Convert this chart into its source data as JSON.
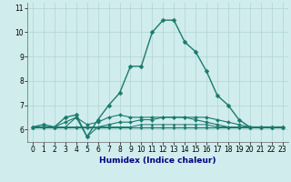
{
  "xlabel": "Humidex (Indice chaleur)",
  "x": [
    0,
    1,
    2,
    3,
    4,
    5,
    6,
    7,
    8,
    9,
    10,
    11,
    12,
    13,
    14,
    15,
    16,
    17,
    18,
    19,
    20,
    21,
    22,
    23
  ],
  "line1": [
    6.1,
    6.2,
    6.1,
    6.5,
    6.6,
    5.7,
    6.4,
    7.0,
    7.5,
    8.6,
    8.6,
    10.0,
    10.5,
    10.5,
    9.6,
    9.2,
    8.4,
    7.4,
    7.0,
    6.4,
    6.1,
    6.1,
    6.1,
    6.1
  ],
  "line2": [
    6.1,
    6.1,
    6.1,
    6.3,
    6.5,
    6.2,
    6.3,
    6.5,
    6.6,
    6.5,
    6.5,
    6.5,
    6.5,
    6.5,
    6.5,
    6.5,
    6.5,
    6.4,
    6.3,
    6.2,
    6.1,
    6.1,
    6.1,
    6.1
  ],
  "line3": [
    6.1,
    6.1,
    6.1,
    6.1,
    6.5,
    5.7,
    6.1,
    6.2,
    6.3,
    6.3,
    6.4,
    6.4,
    6.5,
    6.5,
    6.5,
    6.4,
    6.3,
    6.2,
    6.1,
    6.1,
    6.1,
    6.1,
    6.1,
    6.1
  ],
  "line4": [
    6.1,
    6.1,
    6.1,
    6.1,
    6.1,
    6.1,
    6.1,
    6.1,
    6.1,
    6.1,
    6.2,
    6.2,
    6.2,
    6.2,
    6.2,
    6.2,
    6.2,
    6.1,
    6.1,
    6.1,
    6.1,
    6.1,
    6.1,
    6.1
  ],
  "line5": [
    6.1,
    6.1,
    6.1,
    6.1,
    6.1,
    6.1,
    6.1,
    6.1,
    6.1,
    6.1,
    6.1,
    6.1,
    6.1,
    6.1,
    6.1,
    6.1,
    6.1,
    6.1,
    6.1,
    6.1,
    6.1,
    6.1,
    6.1,
    6.1
  ],
  "line_color": "#1a7a6e",
  "bg_color": "#d0ecec",
  "grid_color": "#b0d4d4",
  "ylim": [
    5.5,
    11.2
  ],
  "yticks": [
    6,
    7,
    8,
    9,
    10,
    11
  ],
  "xticks": [
    0,
    1,
    2,
    3,
    4,
    5,
    6,
    7,
    8,
    9,
    10,
    11,
    12,
    13,
    14,
    15,
    16,
    17,
    18,
    19,
    20,
    21,
    22,
    23
  ]
}
